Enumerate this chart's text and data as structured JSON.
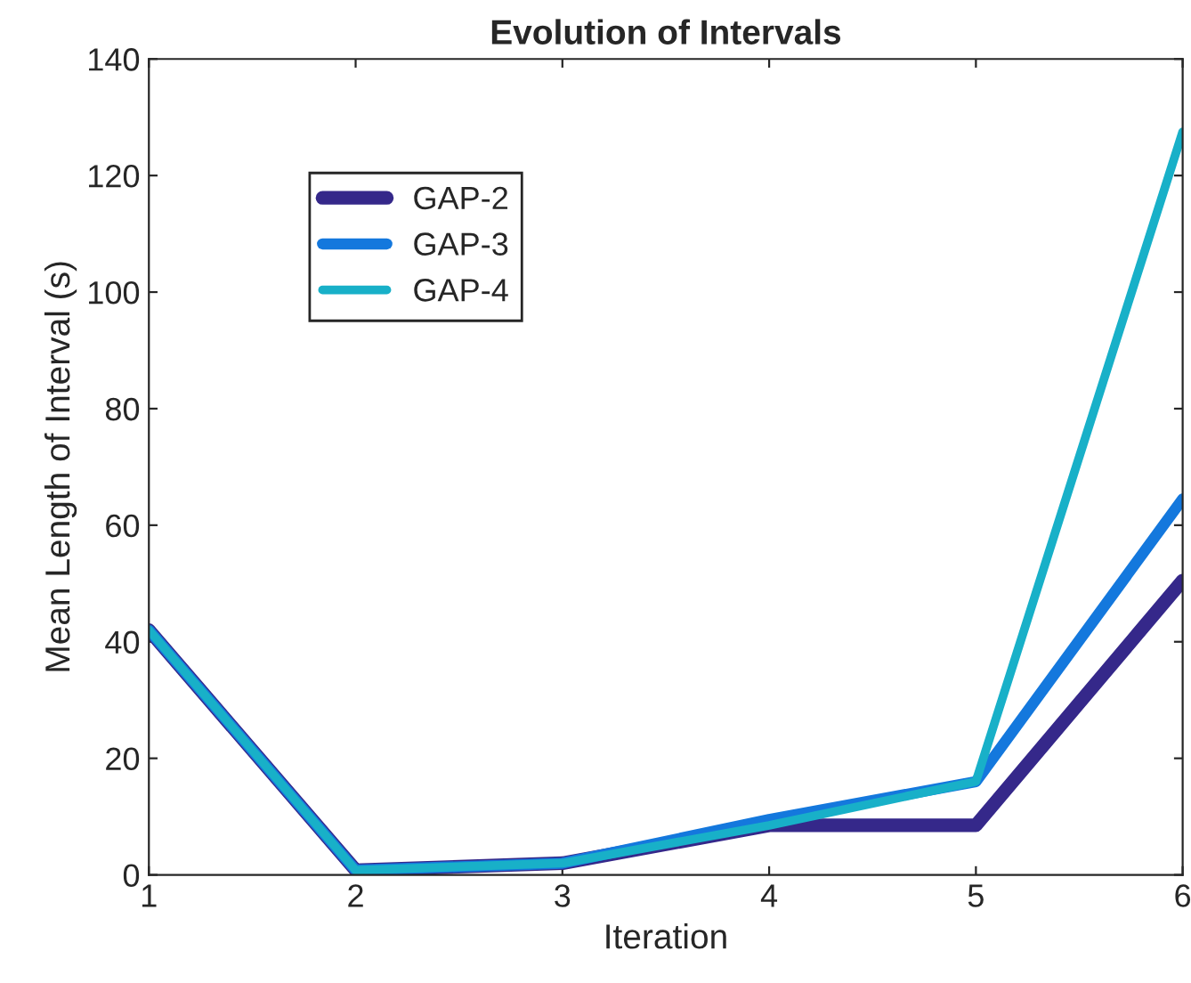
{
  "chart_data": {
    "type": "line",
    "title": "Evolution of Intervals",
    "xlabel": "Iteration",
    "ylabel": "Mean Length of Interval (s)",
    "x": [
      1,
      2,
      3,
      4,
      5,
      6
    ],
    "series": [
      {
        "name": "GAP-2",
        "color": "#35288a",
        "values": [
          42,
          0.8,
          2,
          8.5,
          8.5,
          50.5
        ]
      },
      {
        "name": "GAP-3",
        "color": "#1478dd",
        "values": [
          42,
          0.8,
          2,
          9.5,
          16,
          64.5
        ]
      },
      {
        "name": "GAP-4",
        "color": "#18b0c8",
        "values": [
          42,
          0.8,
          2,
          8.5,
          16,
          127.5
        ]
      }
    ],
    "xlim": [
      1,
      6
    ],
    "xticks": [
      1,
      2,
      3,
      4,
      5,
      6
    ],
    "ylim": [
      0,
      140
    ],
    "yticks": [
      0,
      20,
      40,
      60,
      80,
      100,
      120,
      140
    ],
    "grid": false,
    "legend": "top left",
    "marker": "none",
    "line_style": "solid"
  }
}
